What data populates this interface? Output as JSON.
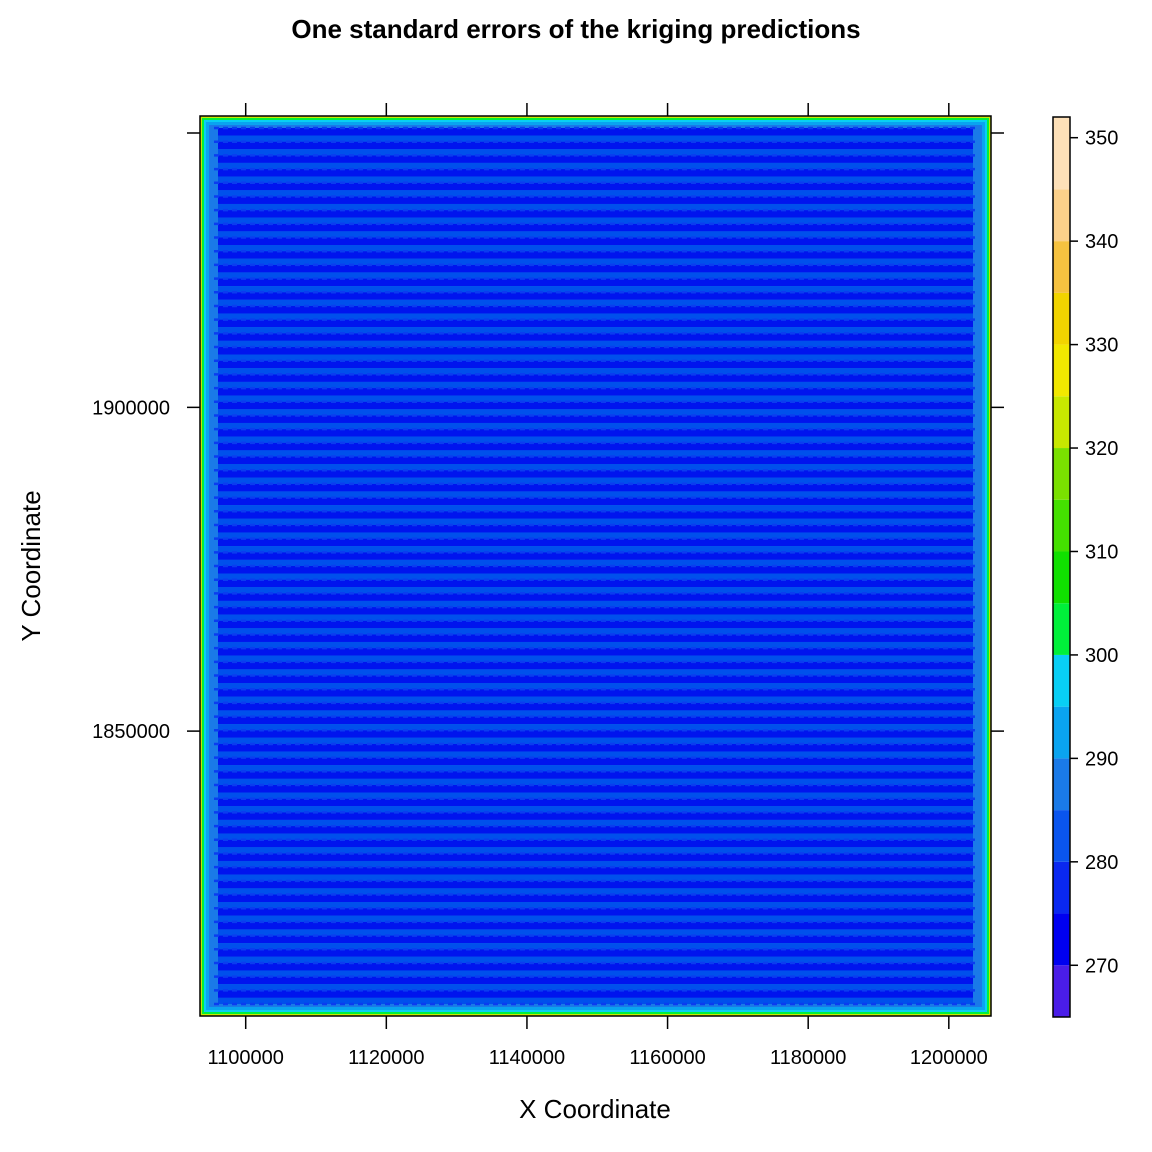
{
  "chart_data": {
    "type": "heatmap",
    "title": "One standard errors of the kriging predictions",
    "xlabel": "X Coordinate",
    "ylabel": "Y Coordinate",
    "xlim": [
      1093500,
      1206000
    ],
    "ylim": [
      1806000,
      1945000
    ],
    "x_ticks": [
      1100000,
      1120000,
      1140000,
      1160000,
      1180000,
      1200000
    ],
    "x_tick_labels": [
      "1100000",
      "1120000",
      "1140000",
      "1160000",
      "1180000",
      "1200000"
    ],
    "y_ticks": [
      1850000,
      1900000
    ],
    "y_tick_labels": [
      "1850000",
      "1900000"
    ],
    "colorkey": {
      "range": [
        265,
        352
      ],
      "ticks": [
        270,
        280,
        290,
        300,
        310,
        320,
        330,
        340,
        350
      ],
      "tick_labels": [
        "270",
        "280",
        "290",
        "300",
        "310",
        "320",
        "330",
        "340",
        "350"
      ],
      "breaks": [
        265,
        270,
        275,
        280,
        285,
        290,
        295,
        300,
        305,
        310,
        315,
        320,
        325,
        330,
        335,
        340,
        345,
        352
      ],
      "colors": [
        "#4a1de8",
        "#0000f0",
        "#0a28f0",
        "#0a55ee",
        "#1a7ae8",
        "#0aa4f0",
        "#08cff5",
        "#00f03a",
        "#10e000",
        "#44e000",
        "#7ae000",
        "#c8e800",
        "#f2e800",
        "#f2d400",
        "#f6c240",
        "#fbd08a",
        "#fde0b8"
      ]
    },
    "field": {
      "interior_band_colors": [
        "#0014ee",
        "#0050ec"
      ],
      "stripe_count": 64,
      "edge_colors": [
        "#1a7ae8",
        "#0aa4f0",
        "#08cff5",
        "#00f03a",
        "#c8e800"
      ]
    }
  }
}
